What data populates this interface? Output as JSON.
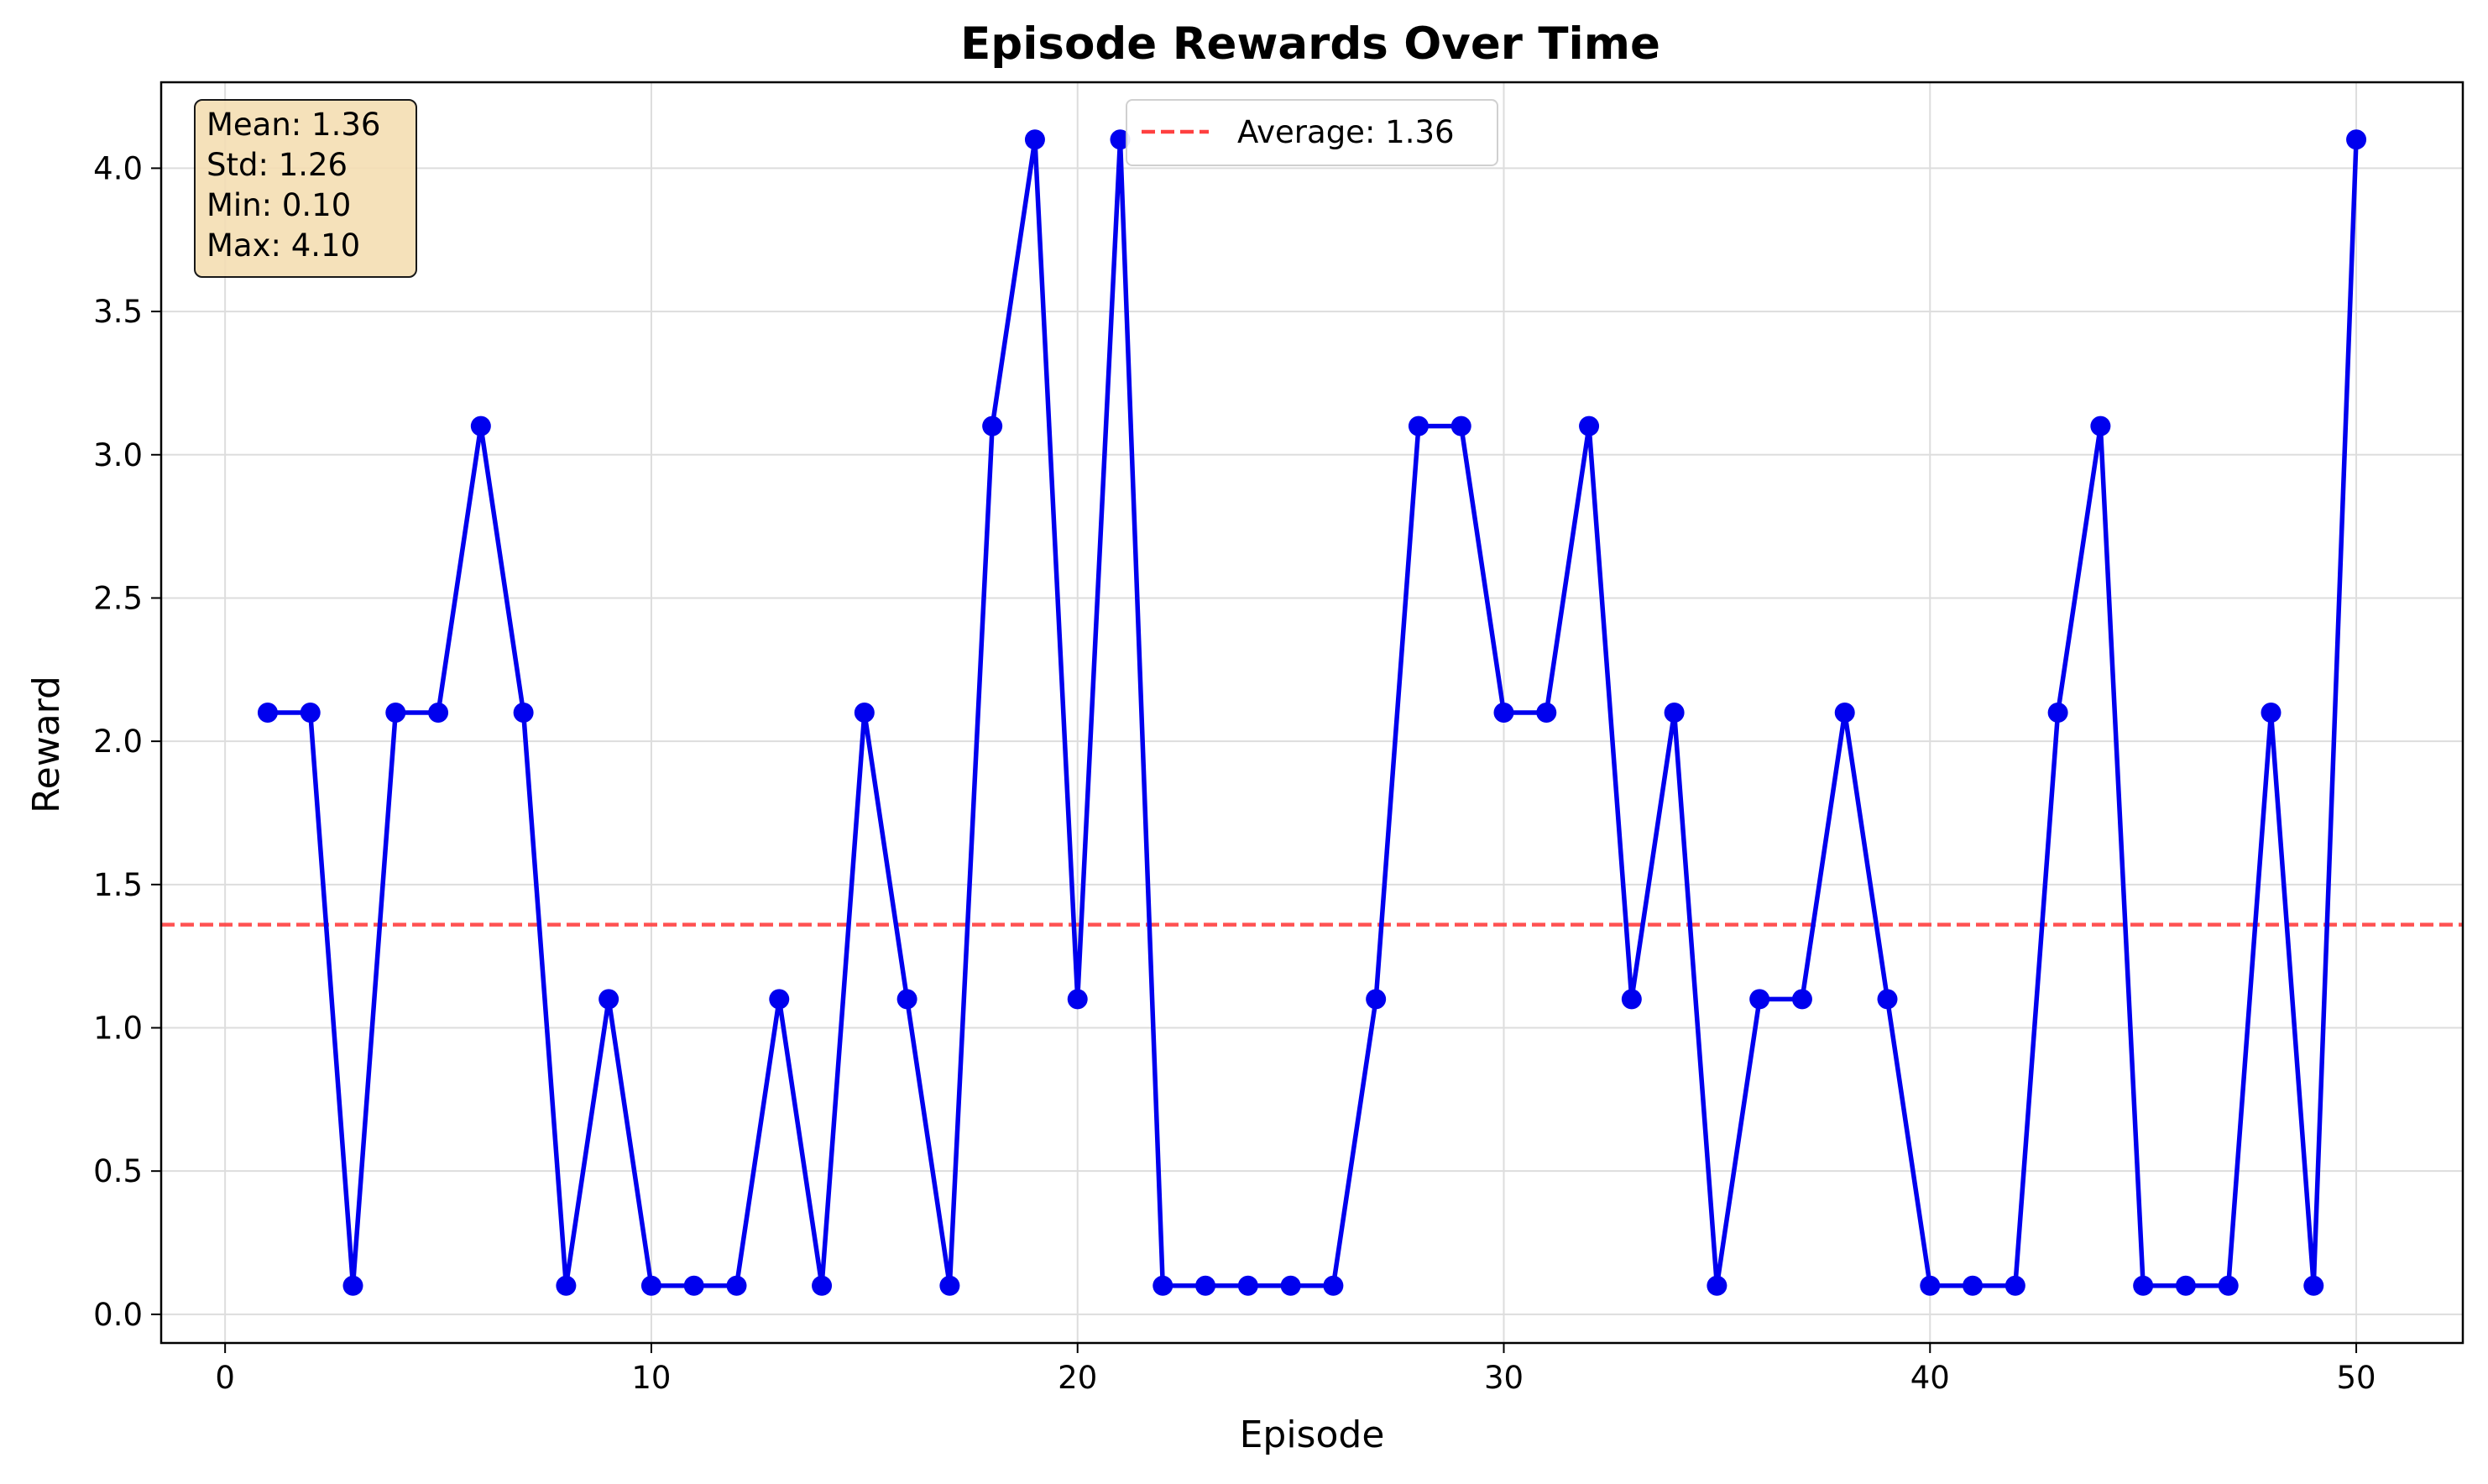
{
  "chart_data": {
    "type": "line",
    "title": "Episode Rewards Over Time",
    "xlabel": "Episode",
    "ylabel": "Reward",
    "xlim": [
      -1.5,
      52.5
    ],
    "ylim": [
      -0.1,
      4.3
    ],
    "x_ticks": [
      0,
      10,
      20,
      30,
      40,
      50
    ],
    "x_tick_labels": [
      "0",
      "10",
      "20",
      "30",
      "40",
      "50"
    ],
    "y_ticks": [
      0.0,
      0.5,
      1.0,
      1.5,
      2.0,
      2.5,
      3.0,
      3.5,
      4.0
    ],
    "y_tick_labels": [
      "0.0",
      "0.5",
      "1.0",
      "1.5",
      "2.0",
      "2.5",
      "3.0",
      "3.5",
      "4.0"
    ],
    "grid": true,
    "legend_position": "top-center",
    "series": [
      {
        "name": "",
        "color": "#0000ee",
        "marker": "circle",
        "x": [
          1,
          2,
          3,
          4,
          5,
          6,
          7,
          8,
          9,
          10,
          11,
          12,
          13,
          14,
          15,
          16,
          17,
          18,
          19,
          20,
          21,
          22,
          23,
          24,
          25,
          26,
          27,
          28,
          29,
          30,
          31,
          32,
          33,
          34,
          35,
          36,
          37,
          38,
          39,
          40,
          41,
          42,
          43,
          44,
          45,
          46,
          47,
          48,
          49,
          50
        ],
        "values": [
          2.1,
          2.1,
          0.1,
          2.1,
          2.1,
          3.1,
          2.1,
          0.1,
          1.1,
          0.1,
          0.1,
          0.1,
          1.1,
          0.1,
          2.1,
          1.1,
          0.1,
          3.1,
          4.1,
          1.1,
          4.1,
          0.1,
          0.1,
          0.1,
          0.1,
          0.1,
          1.1,
          3.1,
          3.1,
          2.1,
          2.1,
          3.1,
          1.1,
          2.1,
          0.1,
          1.1,
          1.1,
          2.1,
          1.1,
          0.1,
          0.1,
          0.1,
          2.1,
          3.1,
          0.1,
          0.1,
          0.1,
          2.1,
          0.1,
          4.1
        ]
      }
    ],
    "reference_line": {
      "label": "Average: 1.36",
      "value": 1.36,
      "color": "#ff4040",
      "style": "dashed"
    },
    "stats_box": {
      "lines": [
        "Mean: 1.36",
        "Std: 1.26",
        "Min: 0.10",
        "Max: 4.10"
      ],
      "background": "#f5deb3"
    }
  }
}
